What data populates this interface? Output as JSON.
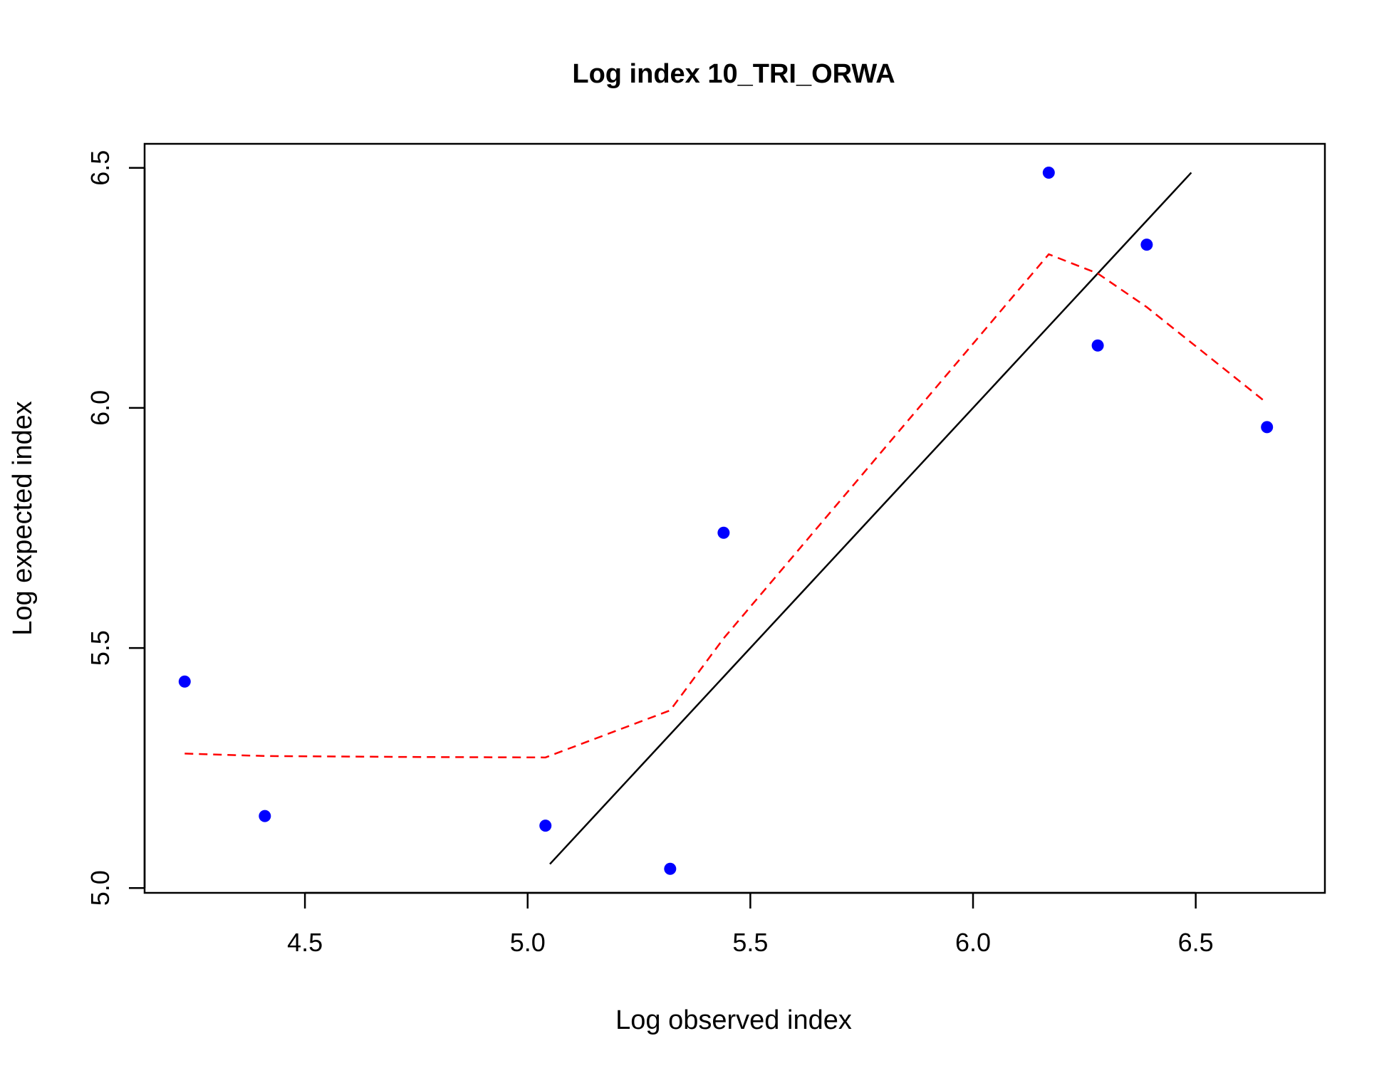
{
  "chart_data": {
    "type": "scatter",
    "title": "Log index 10_TRI_ORWA",
    "xlabel": "Log observed index",
    "ylabel": "Log expected index",
    "xlim": [
      4.14,
      6.79
    ],
    "ylim": [
      4.99,
      6.55
    ],
    "x_ticks": [
      4.5,
      5.0,
      5.5,
      6.0,
      6.5
    ],
    "x_tick_labels": [
      "4.5",
      "5.0",
      "5.5",
      "6.0",
      "6.5"
    ],
    "y_ticks": [
      5.0,
      5.5,
      6.0,
      6.5
    ],
    "y_tick_labels": [
      "5.0",
      "5.5",
      "6.0",
      "6.5"
    ],
    "grid": false,
    "legend": "none",
    "points": {
      "color": "#0000ff",
      "x": [
        4.23,
        4.41,
        5.04,
        5.32,
        5.44,
        6.17,
        6.28,
        6.39,
        6.66
      ],
      "y": [
        5.43,
        5.15,
        5.13,
        5.04,
        5.74,
        6.49,
        6.13,
        6.34,
        5.96
      ]
    },
    "reference_line": {
      "color": "#000000",
      "x": [
        5.05,
        6.49
      ],
      "y": [
        5.05,
        6.49
      ]
    },
    "smooth_line": {
      "color": "#ff0000",
      "style": "dashed",
      "x": [
        4.23,
        4.41,
        4.73,
        5.04,
        5.32,
        5.44,
        6.17,
        6.28,
        6.39,
        6.66
      ],
      "y": [
        5.28,
        5.275,
        5.273,
        5.272,
        5.37,
        5.52,
        6.32,
        6.28,
        6.21,
        6.01
      ]
    }
  }
}
